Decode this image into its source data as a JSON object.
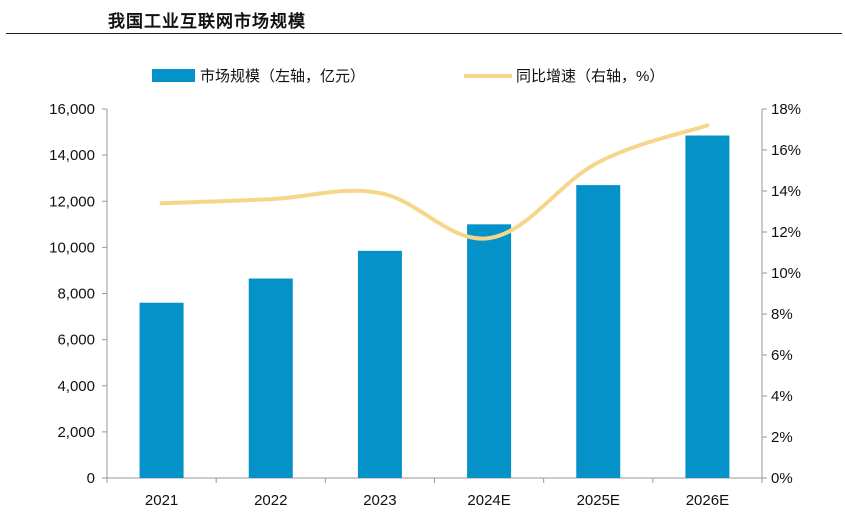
{
  "title": "我国工业互联网市场规模",
  "chart_data": {
    "type": "bar",
    "categories": [
      "2021",
      "2022",
      "2023",
      "2024E",
      "2025E",
      "2026E"
    ],
    "series": [
      {
        "name": "市场规模（左轴，亿元）",
        "type": "bar",
        "axis": "left",
        "color": "#0492c8",
        "values": [
          7600,
          8650,
          9850,
          11000,
          12700,
          14850
        ]
      },
      {
        "name": "同比增速（右轴，%）",
        "type": "line",
        "axis": "right",
        "color": "#f6d68a",
        "values": [
          13.4,
          13.6,
          13.9,
          11.7,
          15.4,
          17.2
        ]
      }
    ],
    "left_axis": {
      "min": 0,
      "max": 16000,
      "step": 2000,
      "tick_labels": [
        "0",
        "2,000",
        "4,000",
        "6,000",
        "8,000",
        "10,000",
        "12,000",
        "14,000",
        "16,000"
      ]
    },
    "right_axis": {
      "min": 0,
      "max": 18,
      "step": 2,
      "tick_labels": [
        "0%",
        "2%",
        "4%",
        "6%",
        "8%",
        "10%",
        "12%",
        "14%",
        "16%",
        "18%"
      ]
    },
    "legend_position": "top",
    "grid": false
  }
}
